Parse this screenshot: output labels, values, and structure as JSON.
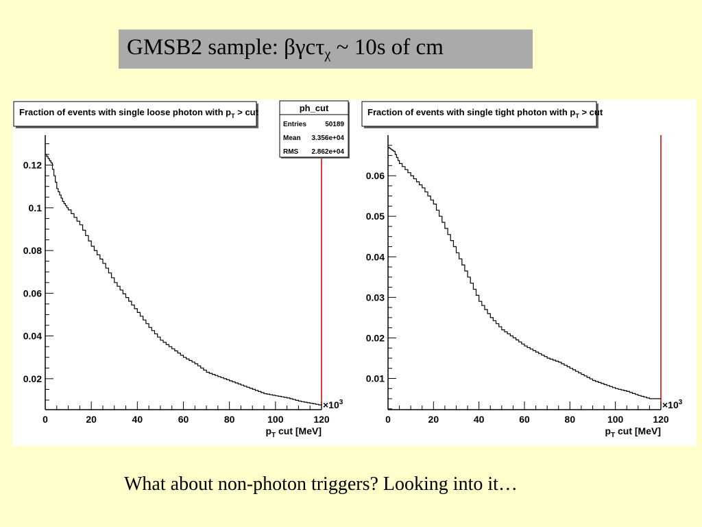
{
  "slide": {
    "title_main": "GMSB2 sample: βγcτ",
    "title_sub": "χ",
    "title_tail": " ~ 10s of cm",
    "footer": "What about non-photon triggers? Looking into it…"
  },
  "colors": {
    "slide_background": "#ffffcc",
    "title_box": "#aaaaaa",
    "histogram_line": "#000000",
    "frame_right_edge": "#cc0000"
  },
  "stats_box": {
    "name": "ph_cut",
    "rows": [
      {
        "label": "Entries",
        "value": "50189"
      },
      {
        "label": "Mean",
        "value": "3.356e+04"
      },
      {
        "label": "RMS",
        "value": "2.862e+04"
      }
    ]
  },
  "chart_data": [
    {
      "type": "line",
      "style": "step",
      "title_prefix": "Fraction of events with single loose photon with p",
      "title_sub": "T",
      "title_suffix": " > cut",
      "xlabel_prefix": "p",
      "xlabel_sub": "T",
      "xlabel_suffix": " cut [MeV]",
      "x_multiplier": "×10",
      "x_multiplier_exp": "3",
      "xlim": [
        0,
        120000
      ],
      "ylim": [
        0.0055,
        0.134
      ],
      "xticks": [
        0,
        20000,
        40000,
        60000,
        80000,
        100000,
        120000
      ],
      "xtick_labels": [
        "0",
        "20",
        "40",
        "60",
        "80",
        "100",
        "120"
      ],
      "yticks": [
        0.02,
        0.04,
        0.06,
        0.08,
        0.1,
        0.12
      ],
      "ytick_labels": [
        "0.02",
        "0.04",
        "0.06",
        "0.08",
        "0.1",
        "0.12"
      ],
      "grid": false,
      "series": [
        {
          "x": [
            0,
            2500,
            5000,
            7500,
            10000,
            15000,
            20000,
            25000,
            30000,
            35000,
            40000,
            45000,
            50000,
            55000,
            60000,
            65000,
            70000,
            75000,
            80000,
            85000,
            90000,
            95000,
            100000,
            105000,
            110000,
            115000,
            120000
          ],
          "values": [
            0.125,
            0.121,
            0.109,
            0.103,
            0.099,
            0.092,
            0.082,
            0.074,
            0.065,
            0.058,
            0.051,
            0.044,
            0.038,
            0.034,
            0.03,
            0.027,
            0.023,
            0.021,
            0.019,
            0.017,
            0.015,
            0.013,
            0.012,
            0.011,
            0.0095,
            0.0085,
            0.0075
          ]
        }
      ]
    },
    {
      "type": "line",
      "style": "step",
      "title_prefix": "Fraction of events with single tight photon with p",
      "title_sub": "T",
      "title_suffix": " > cut",
      "xlabel_prefix": "p",
      "xlabel_sub": "T",
      "xlabel_suffix": " cut [MeV]",
      "x_multiplier": "×10",
      "x_multiplier_exp": "3",
      "xlim": [
        0,
        120000
      ],
      "ylim": [
        0.0023,
        0.07
      ],
      "xticks": [
        0,
        20000,
        40000,
        60000,
        80000,
        100000,
        120000
      ],
      "xtick_labels": [
        "0",
        "20",
        "40",
        "60",
        "80",
        "100",
        "120"
      ],
      "yticks": [
        0.01,
        0.02,
        0.03,
        0.04,
        0.05,
        0.06
      ],
      "ytick_labels": [
        "0.01",
        "0.02",
        "0.03",
        "0.04",
        "0.05",
        "0.06"
      ],
      "grid": false,
      "series": [
        {
          "x": [
            0,
            2500,
            5000,
            10000,
            15000,
            20000,
            25000,
            30000,
            35000,
            40000,
            45000,
            50000,
            55000,
            60000,
            65000,
            70000,
            75000,
            80000,
            85000,
            90000,
            95000,
            100000,
            105000,
            110000,
            115000,
            120000
          ],
          "values": [
            0.067,
            0.066,
            0.063,
            0.06,
            0.057,
            0.053,
            0.047,
            0.041,
            0.035,
            0.029,
            0.025,
            0.022,
            0.02,
            0.018,
            0.0165,
            0.015,
            0.014,
            0.0125,
            0.011,
            0.0095,
            0.0085,
            0.0075,
            0.0068,
            0.0058,
            0.005,
            0.005
          ]
        }
      ]
    }
  ]
}
